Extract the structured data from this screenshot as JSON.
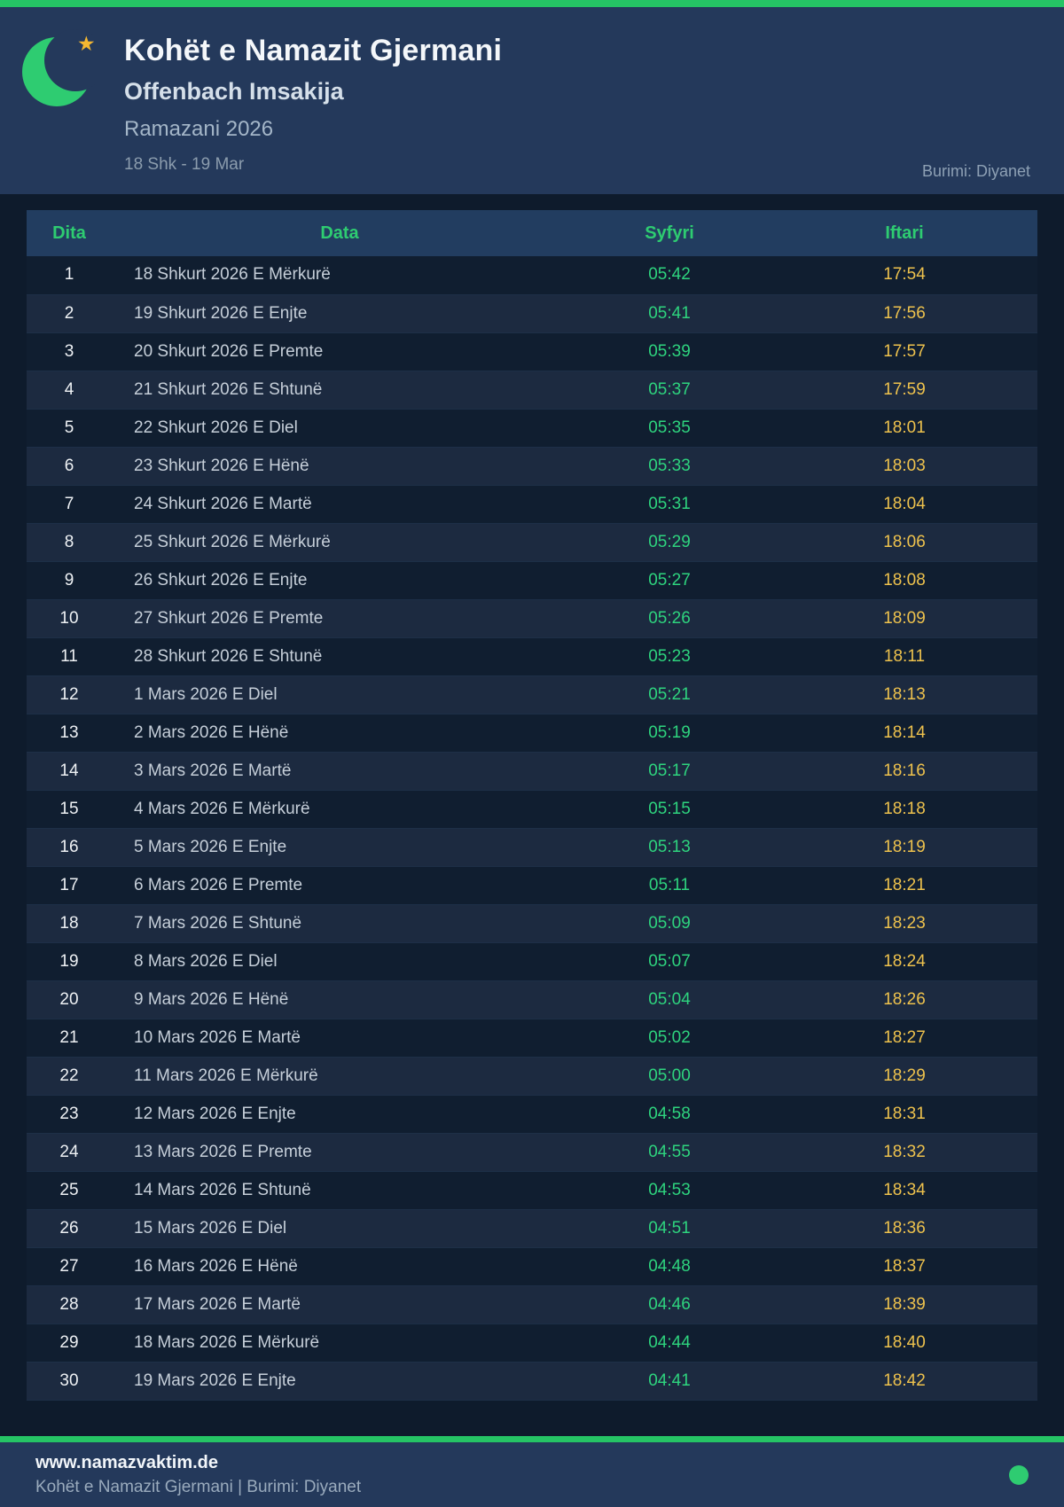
{
  "colors": {
    "accent_green": "#25c465",
    "crescent_green": "#2ecc71",
    "star_gold": "#f5b831",
    "syfyri_green": "#2ed47e",
    "iftari_gold": "#eec24d",
    "header_navy": "#24395b",
    "page_bg": "#0e1b2c"
  },
  "header": {
    "title": "Kohët e Namazit Gjermani",
    "subtitle": "Offenbach Imsakija",
    "season": "Ramazani 2026",
    "date_range": "18 Shk - 19 Mar",
    "source": "Burimi: Diyanet",
    "star_glyph": "★"
  },
  "table": {
    "columns": [
      "Dita",
      "Data",
      "Syfyri",
      "Iftari"
    ],
    "rows": [
      {
        "dita": "1",
        "data": "18 Shkurt 2026 E Mërkurë",
        "syfyri": "05:42",
        "iftari": "17:54"
      },
      {
        "dita": "2",
        "data": "19 Shkurt 2026 E Enjte",
        "syfyri": "05:41",
        "iftari": "17:56"
      },
      {
        "dita": "3",
        "data": "20 Shkurt 2026 E Premte",
        "syfyri": "05:39",
        "iftari": "17:57"
      },
      {
        "dita": "4",
        "data": "21 Shkurt 2026 E Shtunë",
        "syfyri": "05:37",
        "iftari": "17:59"
      },
      {
        "dita": "5",
        "data": "22 Shkurt 2026 E Diel",
        "syfyri": "05:35",
        "iftari": "18:01"
      },
      {
        "dita": "6",
        "data": "23 Shkurt 2026 E Hënë",
        "syfyri": "05:33",
        "iftari": "18:03"
      },
      {
        "dita": "7",
        "data": "24 Shkurt 2026 E Martë",
        "syfyri": "05:31",
        "iftari": "18:04"
      },
      {
        "dita": "8",
        "data": "25 Shkurt 2026 E Mërkurë",
        "syfyri": "05:29",
        "iftari": "18:06"
      },
      {
        "dita": "9",
        "data": "26 Shkurt 2026 E Enjte",
        "syfyri": "05:27",
        "iftari": "18:08"
      },
      {
        "dita": "10",
        "data": "27 Shkurt 2026 E Premte",
        "syfyri": "05:26",
        "iftari": "18:09"
      },
      {
        "dita": "11",
        "data": "28 Shkurt 2026 E Shtunë",
        "syfyri": "05:23",
        "iftari": "18:11"
      },
      {
        "dita": "12",
        "data": "1 Mars 2026 E Diel",
        "syfyri": "05:21",
        "iftari": "18:13"
      },
      {
        "dita": "13",
        "data": "2 Mars 2026 E Hënë",
        "syfyri": "05:19",
        "iftari": "18:14"
      },
      {
        "dita": "14",
        "data": "3 Mars 2026 E Martë",
        "syfyri": "05:17",
        "iftari": "18:16"
      },
      {
        "dita": "15",
        "data": "4 Mars 2026 E Mërkurë",
        "syfyri": "05:15",
        "iftari": "18:18"
      },
      {
        "dita": "16",
        "data": "5 Mars 2026 E Enjte",
        "syfyri": "05:13",
        "iftari": "18:19"
      },
      {
        "dita": "17",
        "data": "6 Mars 2026 E Premte",
        "syfyri": "05:11",
        "iftari": "18:21"
      },
      {
        "dita": "18",
        "data": "7 Mars 2026 E Shtunë",
        "syfyri": "05:09",
        "iftari": "18:23"
      },
      {
        "dita": "19",
        "data": "8 Mars 2026 E Diel",
        "syfyri": "05:07",
        "iftari": "18:24"
      },
      {
        "dita": "20",
        "data": "9 Mars 2026 E Hënë",
        "syfyri": "05:04",
        "iftari": "18:26"
      },
      {
        "dita": "21",
        "data": "10 Mars 2026 E Martë",
        "syfyri": "05:02",
        "iftari": "18:27"
      },
      {
        "dita": "22",
        "data": "11 Mars 2026 E Mërkurë",
        "syfyri": "05:00",
        "iftari": "18:29"
      },
      {
        "dita": "23",
        "data": "12 Mars 2026 E Enjte",
        "syfyri": "04:58",
        "iftari": "18:31"
      },
      {
        "dita": "24",
        "data": "13 Mars 2026 E Premte",
        "syfyri": "04:55",
        "iftari": "18:32"
      },
      {
        "dita": "25",
        "data": "14 Mars 2026 E Shtunë",
        "syfyri": "04:53",
        "iftari": "18:34"
      },
      {
        "dita": "26",
        "data": "15 Mars 2026 E Diel",
        "syfyri": "04:51",
        "iftari": "18:36"
      },
      {
        "dita": "27",
        "data": "16 Mars 2026 E Hënë",
        "syfyri": "04:48",
        "iftari": "18:37"
      },
      {
        "dita": "28",
        "data": "17 Mars 2026 E Martë",
        "syfyri": "04:46",
        "iftari": "18:39"
      },
      {
        "dita": "29",
        "data": "18 Mars 2026 E Mërkurë",
        "syfyri": "04:44",
        "iftari": "18:40"
      },
      {
        "dita": "30",
        "data": "19 Mars 2026 E Enjte",
        "syfyri": "04:41",
        "iftari": "18:42"
      }
    ]
  },
  "footer": {
    "url": "www.namazvaktim.de",
    "subtitle": "Kohët e Namazit Gjermani | Burimi: Diyanet"
  }
}
